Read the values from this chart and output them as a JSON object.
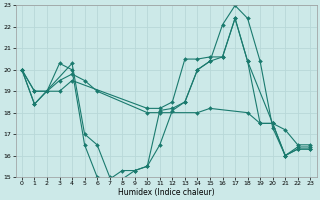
{
  "xlabel": "Humidex (Indice chaleur)",
  "xlim": [
    -0.5,
    23.5
  ],
  "ylim": [
    15,
    23
  ],
  "xticks": [
    0,
    1,
    2,
    3,
    4,
    5,
    6,
    7,
    8,
    9,
    10,
    11,
    12,
    13,
    14,
    15,
    16,
    17,
    18,
    19,
    20,
    21,
    22,
    23
  ],
  "yticks": [
    15,
    16,
    17,
    18,
    19,
    20,
    21,
    22,
    23
  ],
  "bg_color": "#cce9e8",
  "line_color": "#1a7a6e",
  "grid_color": "#b8d8d8",
  "lines": [
    {
      "x": [
        0,
        1,
        2,
        3,
        4,
        5,
        6,
        7,
        8,
        9,
        10,
        11,
        12,
        13,
        14,
        15,
        16,
        17,
        18,
        19,
        20,
        21,
        22,
        23
      ],
      "y": [
        20,
        18.4,
        19,
        20.3,
        20,
        16.5,
        15.0,
        14.9,
        15.3,
        15.3,
        15.5,
        18.1,
        18.2,
        18.5,
        20.0,
        20.4,
        22.1,
        23.0,
        22.4,
        20.4,
        17.3,
        16.0,
        16.3,
        16.3
      ]
    },
    {
      "x": [
        0,
        1,
        3,
        4,
        10,
        11,
        12,
        13,
        14,
        15,
        16,
        17,
        18,
        19,
        20,
        21,
        22,
        23
      ],
      "y": [
        20,
        19,
        19.0,
        19.5,
        18.2,
        18.2,
        18.5,
        20.5,
        20.5,
        20.6,
        20.6,
        22.4,
        20.4,
        17.5,
        17.5,
        16.0,
        16.4,
        16.4
      ]
    },
    {
      "x": [
        0,
        1,
        2,
        3,
        4,
        5,
        6,
        10,
        11,
        14,
        15,
        18,
        19,
        20,
        21,
        22,
        23
      ],
      "y": [
        20,
        19.0,
        19.0,
        19.5,
        19.8,
        19.5,
        19.0,
        18.0,
        18.0,
        18.0,
        18.2,
        18.0,
        17.5,
        17.5,
        17.2,
        16.5,
        16.5
      ]
    },
    {
      "x": [
        0,
        1,
        4,
        5,
        6,
        7,
        8,
        9,
        10,
        11,
        12,
        13,
        14,
        15,
        16,
        17,
        18,
        20,
        21,
        22,
        23
      ],
      "y": [
        20,
        18.4,
        20.3,
        17.0,
        16.5,
        15.0,
        14.9,
        15.3,
        15.5,
        16.5,
        18.1,
        18.5,
        20.0,
        20.4,
        20.6,
        22.4,
        20.4,
        17.5,
        16.0,
        16.3,
        16.3
      ]
    }
  ]
}
